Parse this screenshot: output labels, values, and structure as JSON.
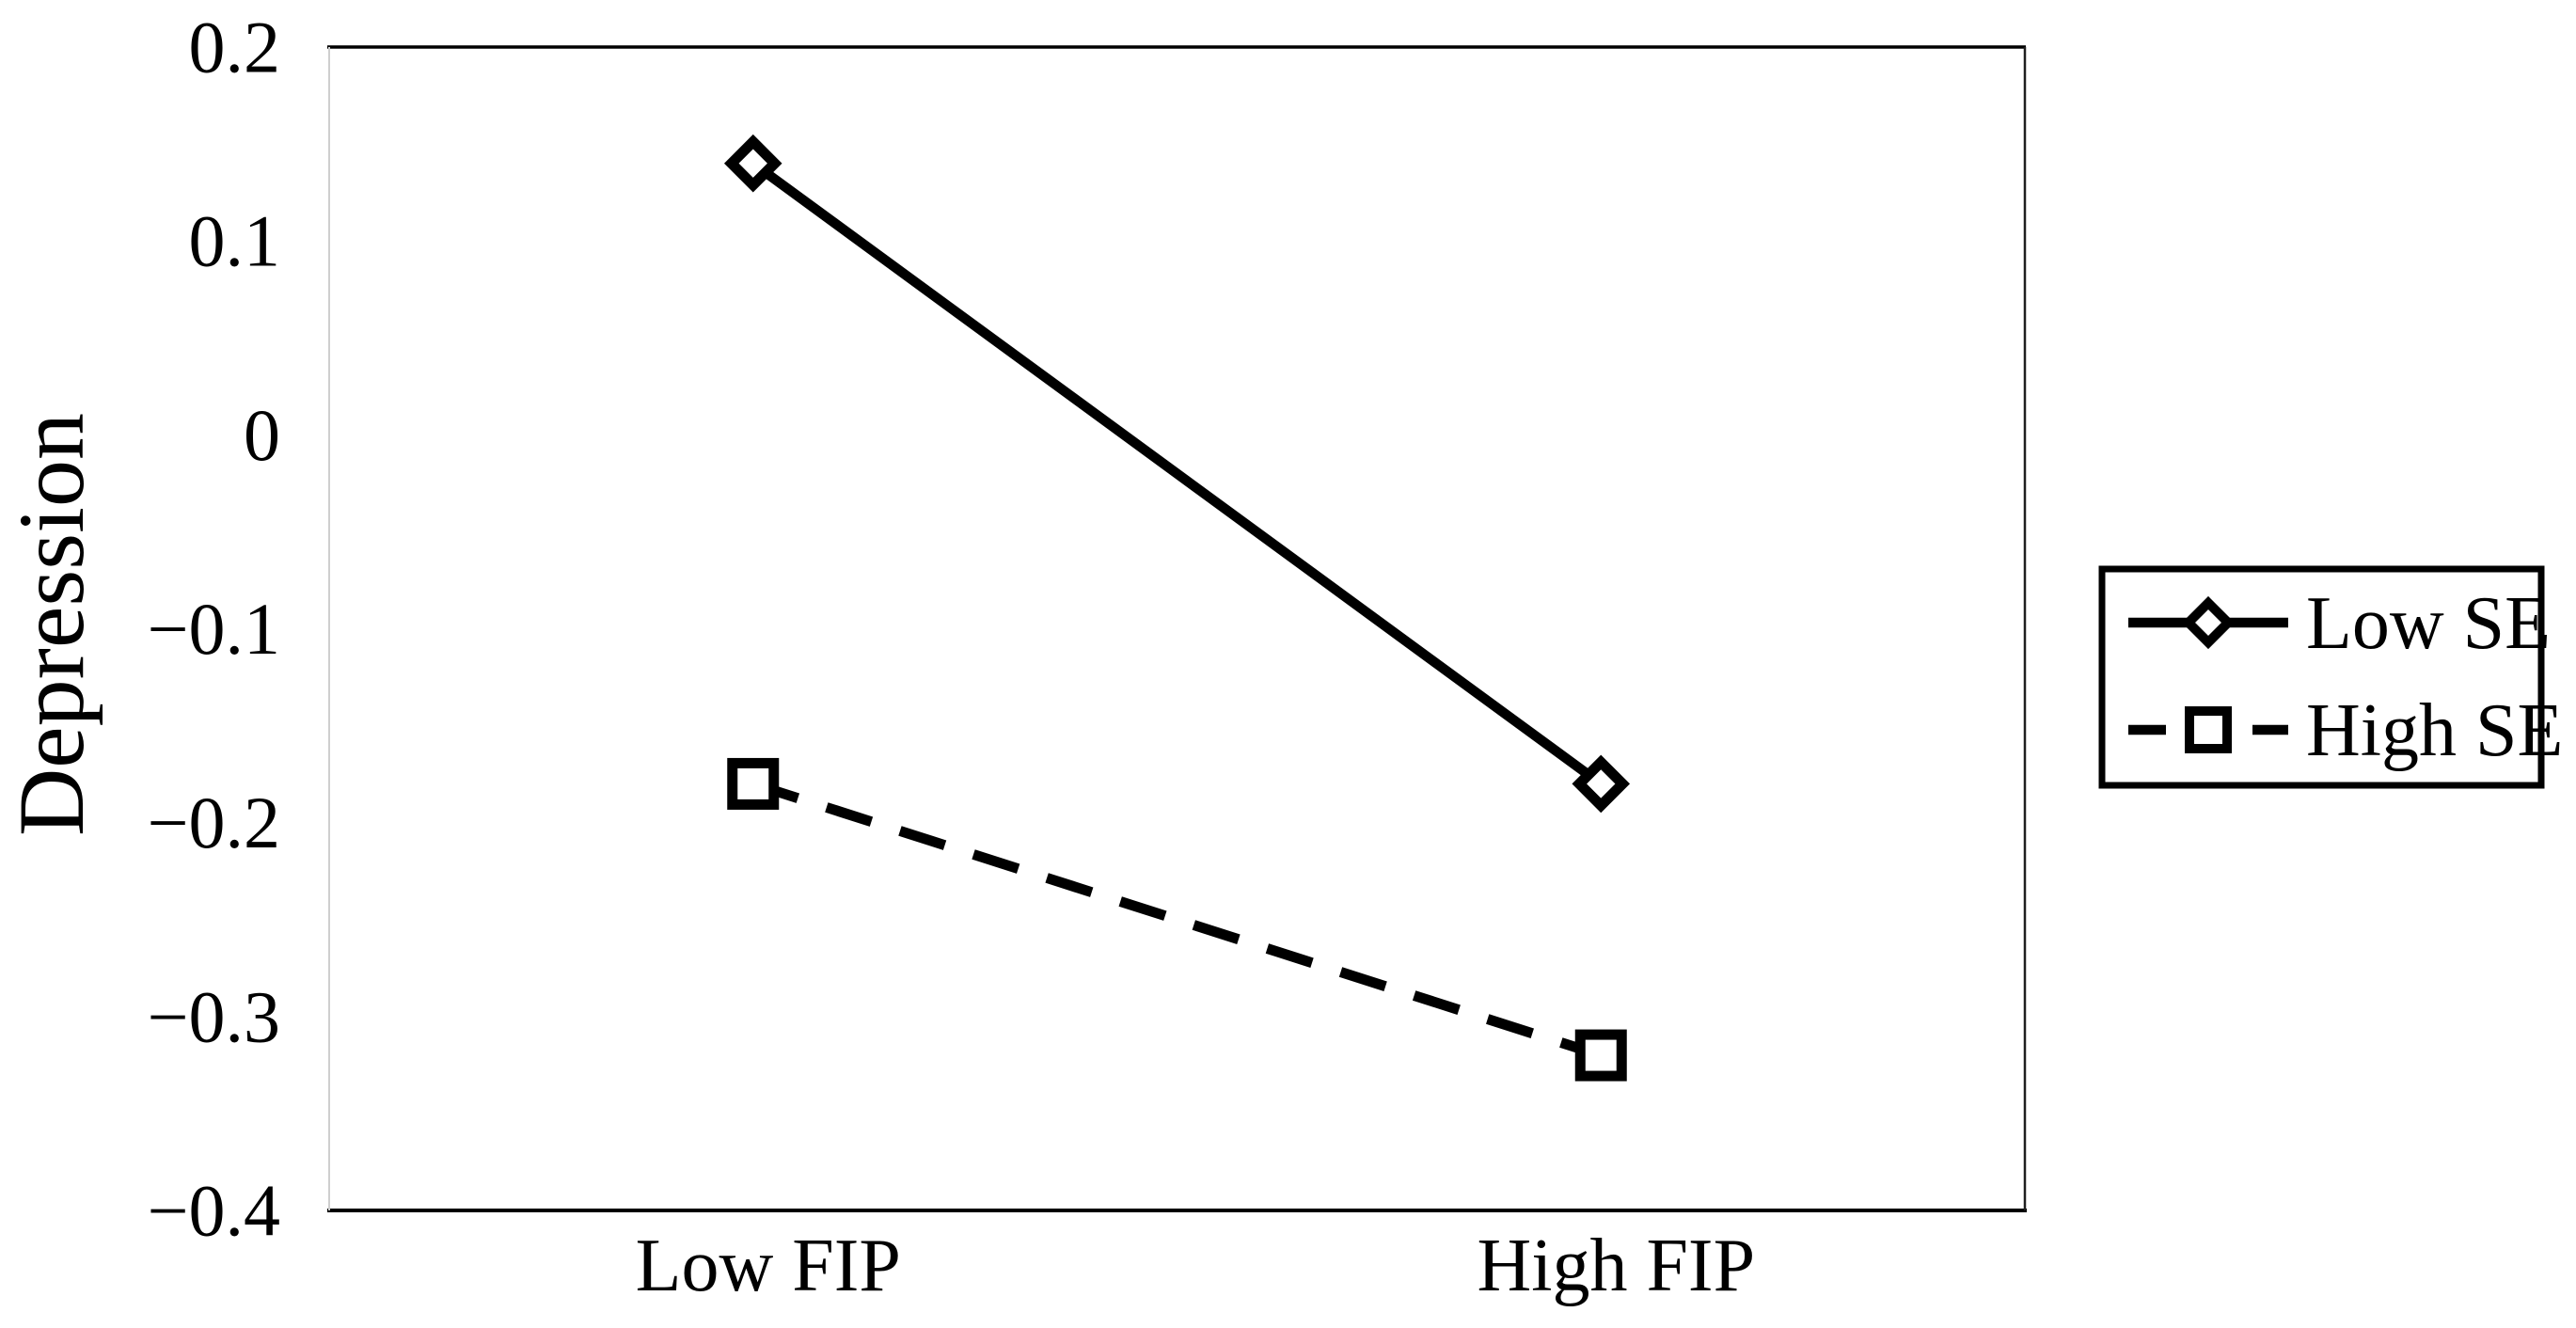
{
  "page": {
    "background_color": "#ffffff",
    "text_color": "#000000"
  },
  "chart_data": {
    "type": "line",
    "title": "",
    "xlabel": "",
    "ylabel": "Depression",
    "categories": [
      "Low FIP",
      "High FIP"
    ],
    "series": [
      {
        "name": "Low SE",
        "values": [
          0.14,
          -0.18
        ],
        "line_style": "solid",
        "marker": "diamond",
        "color": "#000000"
      },
      {
        "name": "High SE",
        "values": [
          -0.18,
          -0.32
        ],
        "line_style": "dashed",
        "marker": "square",
        "color": "#000000"
      }
    ],
    "ylim": [
      -0.4,
      0.2
    ],
    "yticks": [
      {
        "v": 0.2,
        "label": "0.2"
      },
      {
        "v": 0.1,
        "label": "0.1"
      },
      {
        "v": 0,
        "label": "0"
      },
      {
        "v": -0.1,
        "label": "−0.1"
      },
      {
        "v": -0.2,
        "label": "−0.2"
      },
      {
        "v": -0.3,
        "label": "−0.3"
      },
      {
        "v": -0.4,
        "label": "−0.4"
      }
    ],
    "grid": false,
    "legend_position": "right",
    "plot_border": {
      "top_color": "#000000",
      "bottom_color": "#000000",
      "left_color": "#cfcfcf",
      "right_color": "#1f1f1f"
    }
  }
}
